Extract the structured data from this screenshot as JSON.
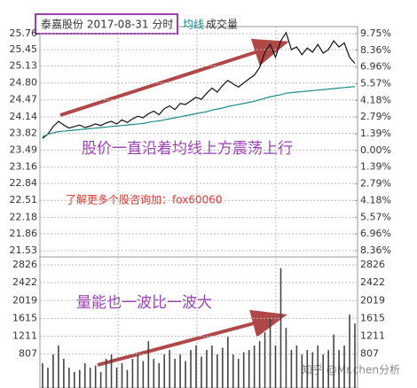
{
  "chart_data": [
    {
      "type": "line",
      "title": "泰嘉股份  2017-08-31  分时",
      "series": [
        {
          "color": "#111111",
          "values": [
            23.72,
            23.8,
            23.95,
            24.05,
            23.98,
            23.92,
            23.95,
            23.98,
            23.93,
            23.96,
            24.0,
            23.97,
            24.02,
            24.05,
            24.0,
            24.08,
            24.03,
            24.1,
            24.15,
            24.12,
            24.2,
            24.25,
            24.18,
            24.3,
            24.35,
            24.28,
            24.4,
            24.38,
            24.45,
            24.52,
            24.48,
            24.6,
            24.7,
            24.62,
            24.75,
            24.85,
            24.78,
            24.72,
            24.8,
            24.88,
            24.95,
            25.1,
            25.4,
            25.55,
            25.3,
            25.62,
            25.78,
            25.45,
            25.5,
            25.35,
            25.48,
            25.4,
            25.55,
            25.38,
            25.45,
            25.62,
            25.5,
            25.58,
            25.3,
            25.18
          ]
        },
        {
          "name": "均线",
          "color": "#1b8a8a",
          "values": [
            23.75,
            23.8,
            23.83,
            23.85,
            23.86,
            23.87,
            23.88,
            23.89,
            23.9,
            23.91,
            23.92,
            23.93,
            23.94,
            23.95,
            23.96,
            23.97,
            23.98,
            23.99,
            24.0,
            24.01,
            24.03,
            24.05,
            24.06,
            24.08,
            24.1,
            24.12,
            24.14,
            24.16,
            24.18,
            24.2,
            24.22,
            24.24,
            24.27,
            24.29,
            24.31,
            24.34,
            24.36,
            24.38,
            24.4,
            24.42,
            24.44,
            24.47,
            24.5,
            24.53,
            24.55,
            24.57,
            24.6,
            24.61,
            24.62,
            24.63,
            24.64,
            24.65,
            24.66,
            24.67,
            24.68,
            24.69,
            24.7,
            24.71,
            24.72,
            24.73
          ]
        }
      ],
      "ylim": [
        21.53,
        25.76
      ],
      "yticks": [
        25.76,
        25.45,
        25.13,
        {
          "value": 24.8,
          "label": "24.80"
        },
        24.47,
        24.14,
        23.82,
        23.49,
        23.16,
        22.84,
        22.51,
        22.18,
        21.86,
        21.53
      ],
      "y2lim": [
        -8.36,
        9.75
      ],
      "y2ticks": [
        {
          "value": 9.75,
          "label": "9.75%"
        },
        {
          "value": 8.36,
          "label": "8.36%"
        },
        {
          "value": 6.96,
          "label": "6.96%"
        },
        {
          "value": 5.57,
          "label": "5.57%"
        },
        {
          "value": 4.18,
          "label": "4.18%"
        },
        {
          "value": 2.79,
          "label": "2.79%"
        },
        {
          "value": 1.39,
          "label": "1.39%"
        },
        {
          "value": 0,
          "label": "0.00%"
        },
        {
          "value": -1.39,
          "label": "1.39%"
        },
        {
          "value": -2.79,
          "label": "2.79%"
        },
        {
          "value": -4.18,
          "label": "4.18%"
        },
        {
          "value": -5.57,
          "label": "5.57%"
        },
        {
          "value": -6.96,
          "label": "6.96%"
        },
        {
          "value": -8.36,
          "label": "8.36%"
        }
      ],
      "grid": true,
      "annotations": [
        "股价一直沿着均线上方震荡上行",
        "了解更多个股咨询加：fox60060"
      ]
    },
    {
      "type": "bar",
      "series": [
        {
          "name": "成交量",
          "color": "#444444",
          "values": [
            600,
            500,
            800,
            1000,
            700,
            500,
            400,
            450,
            600,
            500,
            550,
            400,
            700,
            800,
            500,
            600,
            450,
            700,
            800,
            650,
            1100,
            700,
            600,
            800,
            900,
            700,
            800,
            650,
            900,
            1000,
            750,
            900,
            1000,
            800,
            950,
            1200,
            800,
            700,
            850,
            900,
            1000,
            1100,
            1300,
            1600,
            1000,
            2750,
            1400,
            900,
            1000,
            800,
            900,
            850,
            1000,
            800,
            900,
            1250,
            900,
            1000,
            1700,
            1500
          ]
        }
      ],
      "ylim": [
        0,
        2826
      ],
      "yticks": [
        2826,
        2422,
        2019,
        1615,
        1211,
        807
      ],
      "grid": true,
      "annotations": [
        "量能也一波比一波大"
      ]
    }
  ],
  "watermark": "知乎 @Mr.chen分析"
}
